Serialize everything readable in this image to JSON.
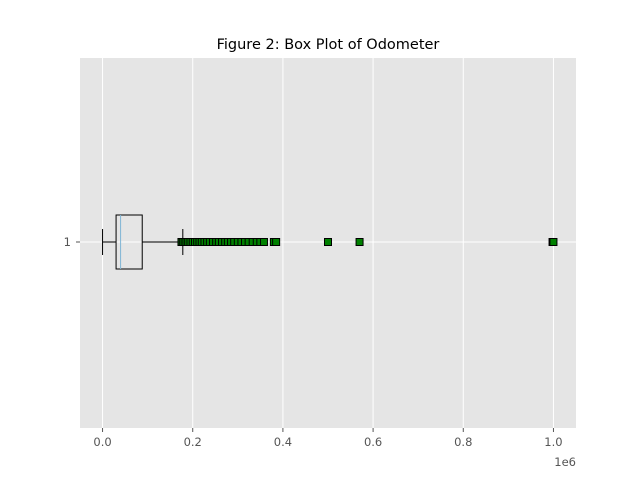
{
  "chart_data": {
    "type": "boxplot",
    "orientation": "horizontal",
    "title": "Figure 2: Box Plot of Odometer",
    "xlabel": "",
    "ylabel": "",
    "x_offset_label": "1e6",
    "xlim": [
      -0.05,
      1.05
    ],
    "x_ticks": [
      0.0,
      0.2,
      0.4,
      0.6,
      0.8,
      1.0
    ],
    "x_tick_labels": [
      "0.0",
      "0.2",
      "0.4",
      "0.6",
      "0.8",
      "1.0"
    ],
    "y_tick_labels": [
      "1"
    ],
    "grid": true,
    "categories": [
      "1"
    ],
    "box": {
      "whisker_low": 0.0,
      "q1": 0.03,
      "median": 0.04,
      "q3": 0.088,
      "whisker_high": 0.178
    },
    "outliers": [
      0.175,
      0.178,
      0.182,
      0.186,
      0.19,
      0.195,
      0.2,
      0.205,
      0.21,
      0.215,
      0.22,
      0.226,
      0.232,
      0.238,
      0.245,
      0.252,
      0.258,
      0.265,
      0.272,
      0.278,
      0.285,
      0.292,
      0.3,
      0.308,
      0.316,
      0.324,
      0.333,
      0.342,
      0.35,
      0.358,
      0.38,
      0.385,
      0.5,
      0.57,
      0.998,
      1.0
    ],
    "colors": {
      "background": "#e5e5e5",
      "grid": "#ffffff",
      "box": "#000000",
      "median": "#7fb5d5",
      "outlier_fill": "#008000",
      "outlier_edge": "#000000",
      "text": "#555555",
      "title": "#000000"
    }
  }
}
